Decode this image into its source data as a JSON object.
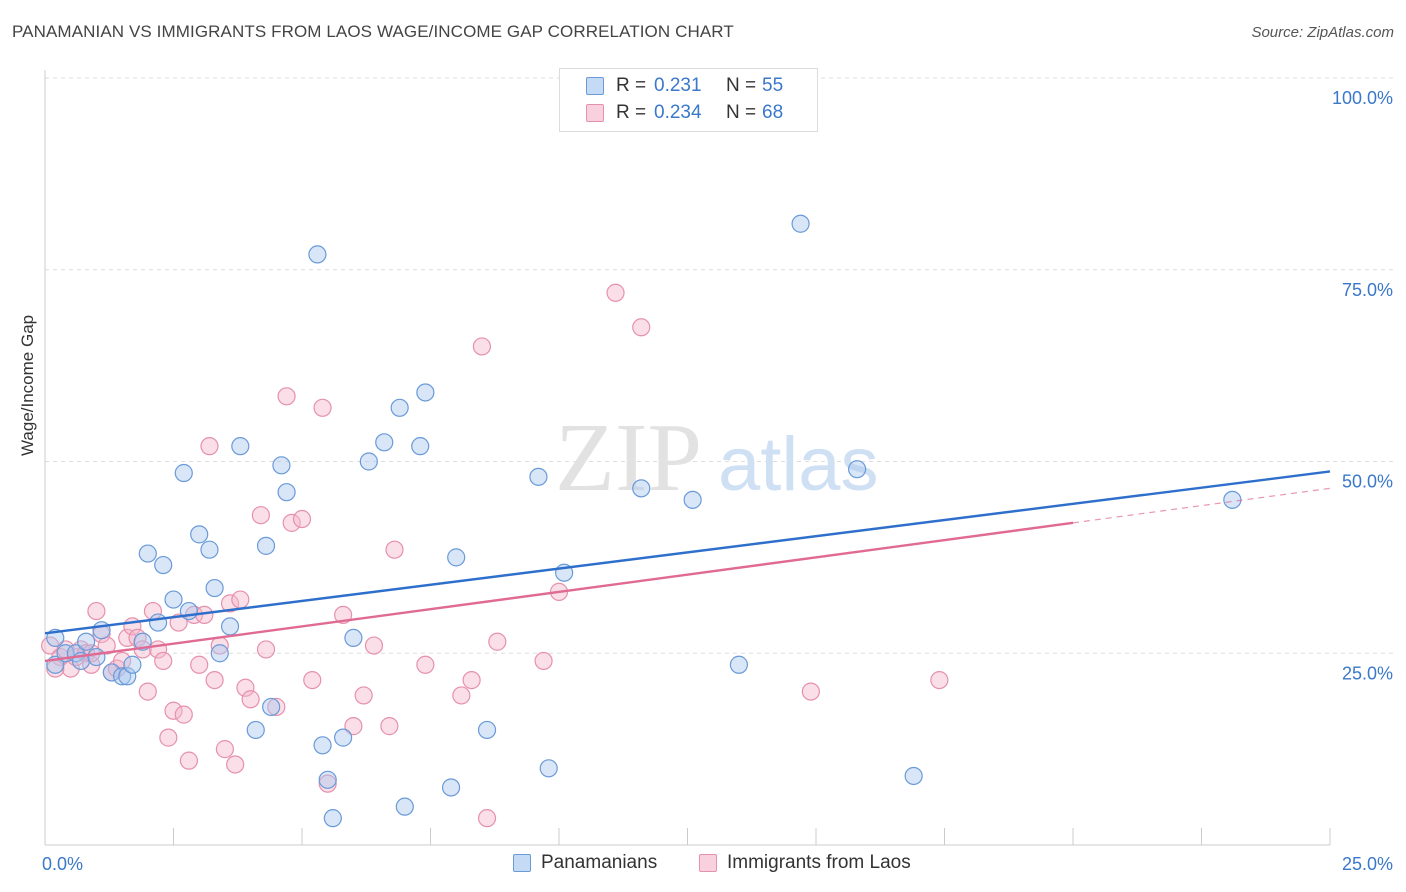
{
  "header": {
    "title": "PANAMANIAN VS IMMIGRANTS FROM LAOS WAGE/INCOME GAP CORRELATION CHART",
    "source": "Source: ZipAtlas.com"
  },
  "watermark": {
    "zip": "ZIP",
    "atlas": "atlas"
  },
  "legend_top": [
    {
      "r_label": "R =",
      "r_value": "0.231",
      "n_label": "N =",
      "n_value": "55"
    },
    {
      "r_label": "R =",
      "r_value": "0.234",
      "n_label": "N =",
      "n_value": "68"
    }
  ],
  "legend_bottom": [
    "Panamanians",
    "Immigrants from Laos"
  ],
  "colors": {
    "blue_fill": "#a9c8f0",
    "blue_stroke": "#6a9ad8",
    "blue_line": "#2f6fcc",
    "pink_fill": "#f5b8cb",
    "pink_stroke": "#e691ac",
    "pink_line": "#e06a93",
    "tick_label": "#3a78c9",
    "grid": "#dddddd"
  },
  "chart_data": {
    "type": "scatter",
    "title": "PANAMANIAN VS IMMIGRANTS FROM LAOS WAGE/INCOME GAP CORRELATION CHART",
    "xlabel": "",
    "ylabel": "Wage/Income Gap",
    "xlim": [
      0,
      25
    ],
    "ylim": [
      0,
      105
    ],
    "x_tick_labels": [
      "0.0%",
      "25.0%"
    ],
    "y_ticks": [
      25,
      50,
      75,
      100
    ],
    "y_tick_labels": [
      "25.0%",
      "50.0%",
      "75.0%",
      "100.0%"
    ],
    "grid": true,
    "legend_position": "top-center",
    "series": [
      {
        "name": "Panamanians",
        "color": "#a9c8f0",
        "r": 0.231,
        "n": 55,
        "trend": {
          "x": [
            0,
            25
          ],
          "y": [
            27.6,
            48.7
          ],
          "style": "solid"
        },
        "points": [
          [
            0.2,
            23.5
          ],
          [
            0.2,
            27.0
          ],
          [
            0.4,
            25.0
          ],
          [
            0.6,
            25.0
          ],
          [
            0.7,
            24.0
          ],
          [
            0.8,
            26.5
          ],
          [
            1.0,
            24.5
          ],
          [
            1.1,
            28.0
          ],
          [
            1.3,
            22.5
          ],
          [
            1.5,
            22.0
          ],
          [
            1.6,
            22.0
          ],
          [
            1.7,
            23.5
          ],
          [
            1.9,
            26.5
          ],
          [
            2.0,
            38.0
          ],
          [
            2.2,
            29.0
          ],
          [
            2.3,
            36.5
          ],
          [
            2.5,
            32.0
          ],
          [
            2.7,
            48.5
          ],
          [
            2.8,
            30.5
          ],
          [
            3.0,
            40.5
          ],
          [
            3.2,
            38.5
          ],
          [
            3.3,
            33.5
          ],
          [
            3.4,
            25.0
          ],
          [
            3.6,
            28.5
          ],
          [
            3.8,
            52.0
          ],
          [
            4.1,
            15.0
          ],
          [
            4.3,
            39.0
          ],
          [
            4.4,
            18.0
          ],
          [
            4.6,
            49.5
          ],
          [
            4.7,
            46.0
          ],
          [
            5.3,
            77.0
          ],
          [
            5.4,
            13.0
          ],
          [
            5.5,
            8.5
          ],
          [
            5.6,
            3.5
          ],
          [
            5.8,
            14.0
          ],
          [
            6.0,
            27.0
          ],
          [
            6.3,
            50.0
          ],
          [
            6.6,
            52.5
          ],
          [
            6.9,
            57.0
          ],
          [
            7.0,
            5.0
          ],
          [
            7.3,
            52.0
          ],
          [
            7.4,
            59.0
          ],
          [
            7.9,
            7.5
          ],
          [
            8.0,
            37.5
          ],
          [
            8.6,
            15.0
          ],
          [
            9.6,
            48.0
          ],
          [
            9.8,
            10.0
          ],
          [
            10.1,
            35.5
          ],
          [
            11.6,
            46.5
          ],
          [
            12.6,
            45.0
          ],
          [
            13.5,
            23.5
          ],
          [
            14.7,
            81.0
          ],
          [
            15.8,
            49.0
          ],
          [
            16.9,
            9.0
          ],
          [
            23.1,
            45.0
          ]
        ]
      },
      {
        "name": "Immigrants from Laos",
        "color": "#f5b8cb",
        "r": 0.234,
        "n": 68,
        "trend": {
          "x": [
            0,
            20
          ],
          "y": [
            24.0,
            42.0
          ],
          "style": "solid"
        },
        "trend_dashed": {
          "x": [
            20,
            25
          ],
          "y": [
            42.0,
            46.5
          ],
          "style": "dashed"
        },
        "points": [
          [
            0.1,
            26.0
          ],
          [
            0.3,
            24.5
          ],
          [
            0.4,
            25.5
          ],
          [
            0.5,
            23.0
          ],
          [
            0.6,
            24.5
          ],
          [
            0.7,
            25.5
          ],
          [
            0.8,
            25.0
          ],
          [
            0.9,
            23.5
          ],
          [
            1.0,
            30.5
          ],
          [
            1.1,
            27.5
          ],
          [
            1.2,
            26.0
          ],
          [
            1.3,
            22.5
          ],
          [
            1.4,
            23.0
          ],
          [
            1.5,
            24.0
          ],
          [
            1.6,
            27.0
          ],
          [
            1.7,
            28.5
          ],
          [
            1.8,
            27.0
          ],
          [
            1.9,
            25.5
          ],
          [
            2.0,
            20.0
          ],
          [
            2.1,
            30.5
          ],
          [
            2.2,
            25.5
          ],
          [
            2.3,
            24.0
          ],
          [
            2.4,
            14.0
          ],
          [
            2.5,
            17.5
          ],
          [
            2.6,
            29.0
          ],
          [
            2.7,
            17.0
          ],
          [
            2.8,
            11.0
          ],
          [
            2.9,
            30.0
          ],
          [
            3.0,
            23.5
          ],
          [
            3.1,
            30.0
          ],
          [
            3.2,
            52.0
          ],
          [
            3.3,
            21.5
          ],
          [
            3.4,
            26.0
          ],
          [
            3.5,
            12.5
          ],
          [
            3.6,
            31.5
          ],
          [
            3.7,
            10.5
          ],
          [
            3.8,
            32.0
          ],
          [
            3.9,
            20.5
          ],
          [
            4.0,
            19.0
          ],
          [
            4.2,
            43.0
          ],
          [
            4.3,
            25.5
          ],
          [
            4.5,
            18.0
          ],
          [
            4.7,
            58.5
          ],
          [
            4.8,
            42.0
          ],
          [
            5.0,
            42.5
          ],
          [
            5.2,
            21.5
          ],
          [
            5.4,
            57.0
          ],
          [
            5.5,
            8.0
          ],
          [
            5.8,
            30.0
          ],
          [
            6.0,
            15.5
          ],
          [
            6.2,
            19.5
          ],
          [
            6.4,
            26.0
          ],
          [
            6.7,
            15.5
          ],
          [
            6.8,
            38.5
          ],
          [
            7.4,
            23.5
          ],
          [
            8.1,
            19.5
          ],
          [
            8.3,
            21.5
          ],
          [
            8.5,
            65.0
          ],
          [
            8.6,
            3.5
          ],
          [
            8.8,
            26.5
          ],
          [
            9.7,
            24.0
          ],
          [
            10.0,
            33.0
          ],
          [
            11.1,
            72.0
          ],
          [
            11.6,
            67.5
          ],
          [
            14.9,
            20.0
          ],
          [
            17.4,
            21.5
          ],
          [
            0.2,
            23.0
          ],
          [
            0.9,
            25.0
          ]
        ]
      }
    ]
  }
}
